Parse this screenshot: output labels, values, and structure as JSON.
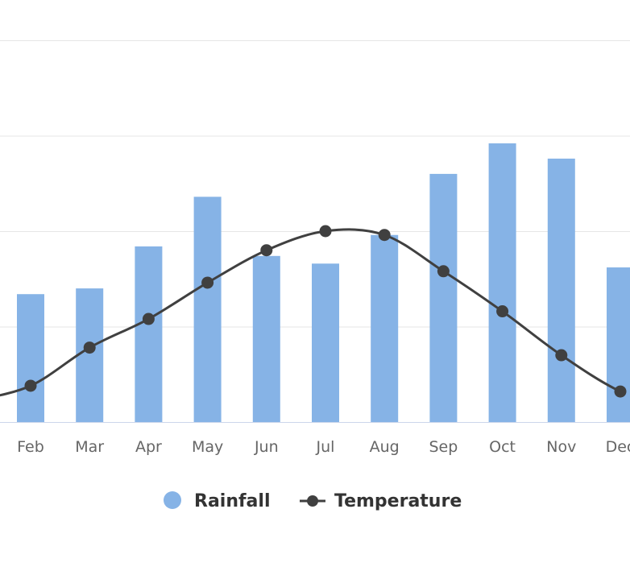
{
  "chart_data": {
    "type": "bar",
    "title": "",
    "xlabel": "",
    "ylabel": "",
    "ylim": [
      0,
      200
    ],
    "grid": true,
    "gridlines": [
      50,
      100,
      150,
      200
    ],
    "categories": [
      "Feb",
      "Mar",
      "Apr",
      "May",
      "Jun",
      "Jul",
      "Aug",
      "Sep",
      "Oct",
      "Nov",
      "Dec"
    ],
    "series": [
      {
        "name": "Rainfall",
        "type": "bar",
        "color": "#86b3e6",
        "values": [
          67,
          70,
          92,
          118,
          87,
          83,
          98,
          130,
          146,
          138,
          81
        ]
      },
      {
        "name": "Temperature",
        "type": "line",
        "color": "#404040",
        "values": [
          19,
          39,
          54,
          73,
          90,
          100,
          98,
          79,
          58,
          35,
          16
        ]
      }
    ],
    "legend": {
      "placement": "bottom-center",
      "items": [
        "Rainfall",
        "Temperature"
      ]
    }
  }
}
